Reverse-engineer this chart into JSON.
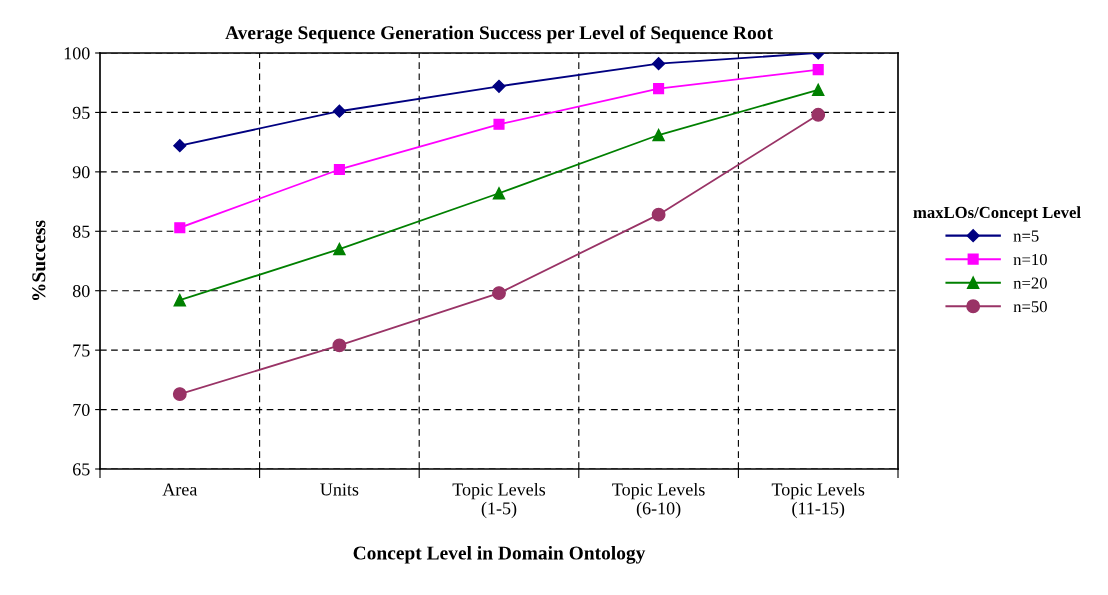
{
  "chart_data": {
    "type": "line",
    "title": "Average Sequence Generation Success per Level of Sequence Root",
    "xlabel": "Concept Level in Domain Ontology",
    "ylabel": "%Success",
    "legend_title": "maxLOs/Concept Level",
    "categories": [
      "Area",
      "Units",
      "Topic Levels\n(1-5)",
      "Topic Levels\n(6-10)",
      "Topic Levels\n(11-15)"
    ],
    "series": [
      {
        "name": "n=5",
        "color": "#000080",
        "marker": "diamond",
        "values": [
          92.2,
          95.1,
          97.2,
          99.1,
          100
        ]
      },
      {
        "name": "n=10",
        "color": "#ff00ff",
        "marker": "square",
        "values": [
          85.3,
          90.2,
          94.0,
          97.0,
          98.6
        ]
      },
      {
        "name": "n=20",
        "color": "#008000",
        "marker": "triangle",
        "values": [
          79.2,
          83.5,
          88.2,
          93.1,
          96.9
        ]
      },
      {
        "name": "n=50",
        "color": "#993366",
        "marker": "circle",
        "values": [
          71.3,
          75.4,
          79.8,
          86.4,
          94.8
        ]
      }
    ],
    "ylim": [
      65,
      100
    ],
    "yticks": [
      65,
      70,
      75,
      80,
      85,
      90,
      95,
      100
    ],
    "grid": true,
    "legend": "right",
    "line_style": "solid"
  }
}
